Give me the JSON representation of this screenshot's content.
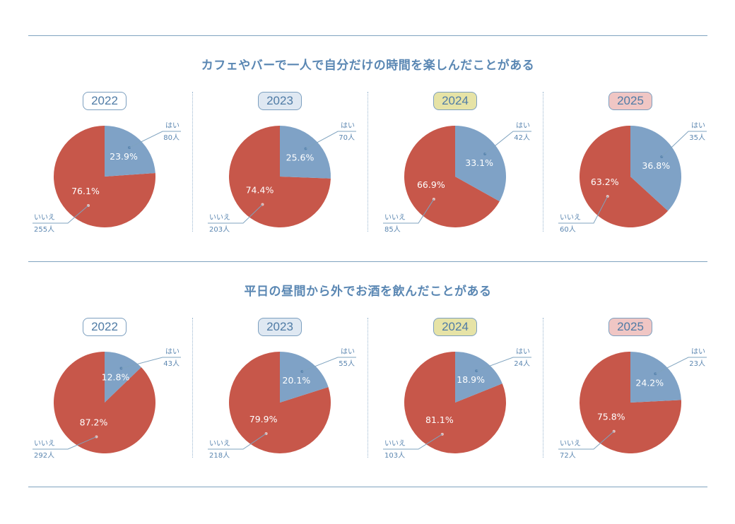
{
  "colors": {
    "yes": "#7fa2c6",
    "no": "#c7574a",
    "line": "#7fa3bf",
    "label": "#5b86b0"
  },
  "badge_colors": {
    "2022": "#ffffff",
    "2023": "#dfe8f2",
    "2024": "#e6e3a6",
    "2025": "#f0c6c4"
  },
  "legend": {
    "yes": "はい",
    "no": "いいえ"
  },
  "chart_data": [
    {
      "type": "pie",
      "title": "カフェやバーで一人で自分だけの時間を楽しんだことがある",
      "panels": [
        {
          "year": "2022",
          "slices": [
            {
              "label": "はい",
              "percent": 23.9,
              "count": "80人"
            },
            {
              "label": "いいえ",
              "percent": 76.1,
              "count": "255人"
            }
          ]
        },
        {
          "year": "2023",
          "slices": [
            {
              "label": "はい",
              "percent": 25.6,
              "count": "70人"
            },
            {
              "label": "いいえ",
              "percent": 74.4,
              "count": "203人"
            }
          ]
        },
        {
          "year": "2024",
          "slices": [
            {
              "label": "はい",
              "percent": 33.1,
              "count": "42人"
            },
            {
              "label": "いいえ",
              "percent": 66.9,
              "count": "85人"
            }
          ]
        },
        {
          "year": "2025",
          "slices": [
            {
              "label": "はい",
              "percent": 36.8,
              "count": "35人"
            },
            {
              "label": "いいえ",
              "percent": 63.2,
              "count": "60人"
            }
          ]
        }
      ]
    },
    {
      "type": "pie",
      "title": "平日の昼間から外でお酒を飲んだことがある",
      "panels": [
        {
          "year": "2022",
          "slices": [
            {
              "label": "はい",
              "percent": 12.8,
              "count": "43人"
            },
            {
              "label": "いいえ",
              "percent": 87.2,
              "count": "292人"
            }
          ]
        },
        {
          "year": "2023",
          "slices": [
            {
              "label": "はい",
              "percent": 20.1,
              "count": "55人"
            },
            {
              "label": "いいえ",
              "percent": 79.9,
              "count": "218人"
            }
          ]
        },
        {
          "year": "2024",
          "slices": [
            {
              "label": "はい",
              "percent": 18.9,
              "count": "24人"
            },
            {
              "label": "いいえ",
              "percent": 81.1,
              "count": "103人"
            }
          ]
        },
        {
          "year": "2025",
          "slices": [
            {
              "label": "はい",
              "percent": 24.2,
              "count": "23人"
            },
            {
              "label": "いいえ",
              "percent": 75.8,
              "count": "72人"
            }
          ]
        }
      ]
    }
  ]
}
